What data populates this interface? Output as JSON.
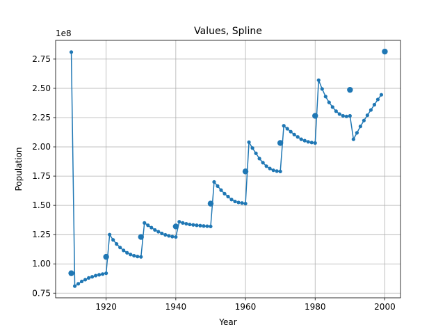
{
  "chart_data": {
    "type": "line",
    "title": "Values, Spline",
    "xlabel": "Year",
    "ylabel": "Population",
    "offset_text": "1e8",
    "xlim": [
      1905.5,
      2004.5
    ],
    "ylim": [
      71000000,
      291000000
    ],
    "xticks": [
      1920,
      1940,
      1960,
      1980,
      2000
    ],
    "yticks": [
      75000000,
      100000000,
      125000000,
      150000000,
      175000000,
      200000000,
      225000000,
      250000000,
      275000000
    ],
    "ytick_labels": [
      "0.75",
      "1.00",
      "1.25",
      "1.50",
      "1.75",
      "2.00",
      "2.25",
      "2.50",
      "2.75"
    ],
    "grid": true,
    "color": "#1f77b4",
    "series": [
      {
        "role": "spline",
        "x": [
          1910,
          1911,
          1912,
          1913,
          1914,
          1915,
          1916,
          1917,
          1918,
          1919,
          1920,
          1921,
          1922,
          1923,
          1924,
          1925,
          1926,
          1927,
          1928,
          1929,
          1930,
          1931,
          1932,
          1933,
          1934,
          1935,
          1936,
          1937,
          1938,
          1939,
          1940,
          1941,
          1942,
          1943,
          1944,
          1945,
          1946,
          1947,
          1948,
          1949,
          1950,
          1951,
          1952,
          1953,
          1954,
          1955,
          1956,
          1957,
          1958,
          1959,
          1960,
          1961,
          1962,
          1963,
          1964,
          1965,
          1966,
          1967,
          1968,
          1969,
          1970,
          1971,
          1972,
          1973,
          1974,
          1975,
          1976,
          1977,
          1978,
          1979,
          1980,
          1981,
          1982,
          1983,
          1984,
          1985,
          1986,
          1987,
          1988,
          1989,
          1990,
          1991,
          1992,
          1993,
          1994,
          1995,
          1996,
          1997,
          1998,
          1999
        ],
        "y": [
          281000000,
          81000000,
          83000000,
          85000000,
          86500000,
          88000000,
          89000000,
          90000000,
          90700000,
          91300000,
          92000000,
          125000000,
          120500000,
          117000000,
          114000000,
          111500000,
          109500000,
          108000000,
          107000000,
          106300000,
          106000000,
          135000000,
          133000000,
          131000000,
          129000000,
          127500000,
          126000000,
          124800000,
          124000000,
          123300000,
          123000000,
          136000000,
          135000000,
          134300000,
          133700000,
          133300000,
          133000000,
          132700000,
          132400000,
          132200000,
          132000000,
          170000000,
          166500000,
          163000000,
          160000000,
          157500000,
          155000000,
          153300000,
          152500000,
          152000000,
          151500000,
          204000000,
          199000000,
          194500000,
          190000000,
          186500000,
          183500000,
          181500000,
          180000000,
          179300000,
          179000000,
          218000000,
          215500000,
          213000000,
          210500000,
          208500000,
          206500000,
          205300000,
          204300000,
          203700000,
          203300000,
          257000000,
          249500000,
          243000000,
          238000000,
          234000000,
          230500000,
          228000000,
          226500000,
          226000000,
          226500000,
          206500000,
          212000000,
          217500000,
          222500000,
          227000000,
          231500000,
          236000000,
          240500000,
          244500000
        ]
      },
      {
        "role": "observations",
        "x": [
          1910,
          1920,
          1930,
          1940,
          1950,
          1960,
          1970,
          1980,
          1990,
          2000
        ],
        "y": [
          92000000,
          106000000,
          123000000,
          132000000,
          151500000,
          179000000,
          203300000,
          226500000,
          248700000,
          281400000
        ]
      }
    ]
  }
}
